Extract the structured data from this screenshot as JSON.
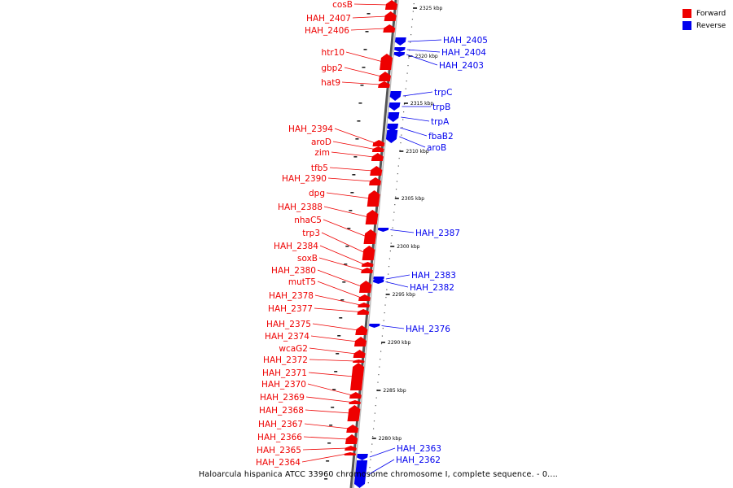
{
  "legend": {
    "forward_label": "Forward",
    "reverse_label": "Reverse",
    "forward_color": "#ee0000",
    "reverse_color": "#0000ee"
  },
  "caption": "Haloarcula hispanica ATCC 33960 chromosome chromosome I, complete sequence. - 0....",
  "ticks": [
    "2325 kbp",
    "2320 kbp",
    "2315 kbp",
    "2310 kbp",
    "2305 kbp",
    "2300 kbp",
    "2295 kbp",
    "2290 kbp",
    "2285 kbp",
    "2280 kbp"
  ],
  "forward_genes": [
    "cosB",
    "HAH_2407",
    "HAH_2406",
    "htr10",
    "gbp2",
    "hat9",
    "HAH_2394",
    "aroD",
    "zim",
    "tfb5",
    "HAH_2390",
    "dpg",
    "HAH_2388",
    "nhaC5",
    "trp3",
    "HAH_2384",
    "soxB",
    "HAH_2380",
    "mutT5",
    "HAH_2378",
    "HAH_2377",
    "HAH_2375",
    "HAH_2374",
    "wcaG2",
    "HAH_2372",
    "HAH_2371",
    "HAH_2370",
    "HAH_2369",
    "HAH_2368",
    "HAH_2367",
    "HAH_2366",
    "HAH_2365",
    "HAH_2364"
  ],
  "reverse_genes": [
    "HAH_2405",
    "HAH_2404",
    "HAH_2403",
    "trpC",
    "trpB",
    "trpA",
    "fbaB2",
    "aroB",
    "HAH_2387",
    "HAH_2383",
    "HAH_2382",
    "HAH_2376",
    "HAH_2363",
    "HAH_2362"
  ]
}
